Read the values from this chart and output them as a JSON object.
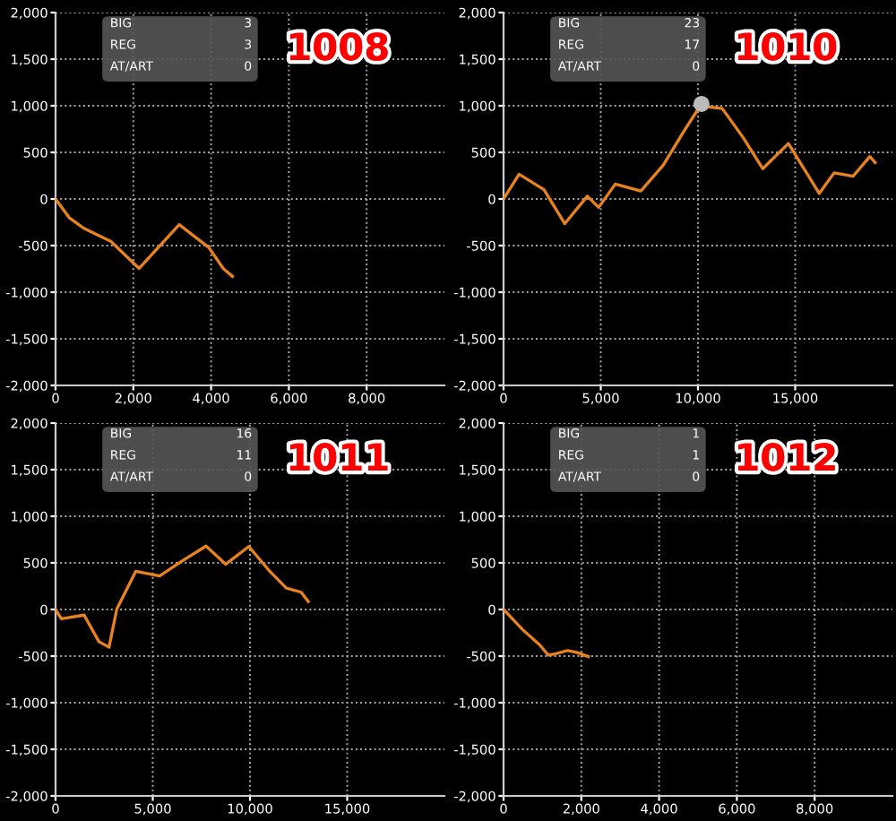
{
  "chart_data": [
    {
      "type": "line",
      "title": "1008",
      "annotations": [
        "BIG",
        "3",
        "REG",
        "3",
        "AT/ART",
        "0"
      ],
      "grid": true,
      "marker": "none",
      "line_style": "solid",
      "xlim": [
        0,
        10000
      ],
      "xticks": [
        0,
        {
          "value": 2000,
          "label": "2,000"
        },
        {
          "value": 4000,
          "label": "4,000"
        },
        {
          "value": 6000,
          "label": "6,000"
        },
        {
          "value": 8000,
          "label": "8,000"
        }
      ],
      "ylim": [
        -2000,
        2000
      ],
      "yticks": [
        {
          "value": -2000,
          "label": "-2,000"
        },
        {
          "value": -1500,
          "label": "-1,500"
        },
        {
          "value": -1000,
          "label": "-1,000"
        },
        -500,
        0,
        500,
        {
          "value": 1000,
          "label": "1,000"
        },
        {
          "value": 1500,
          "label": "1,500"
        },
        {
          "value": 2000,
          "label": "2,000"
        }
      ],
      "series": [
        {
          "color": "#e8821e",
          "x": [
            0,
            350,
            730,
            1420,
            2150,
            3180,
            3940,
            4320,
            4550
          ],
          "values": [
            0,
            -200,
            -315,
            -455,
            -745,
            -275,
            -520,
            -750,
            -830
          ]
        }
      ]
    },
    {
      "type": "line",
      "title": "1010",
      "annotations": [
        "BIG",
        "23",
        "REG",
        "17",
        "AT/ART",
        "0"
      ],
      "grid": true,
      "marker": "none",
      "line_style": "solid",
      "xlim": [
        0,
        20000
      ],
      "xticks": [
        0,
        {
          "value": 5000,
          "label": "5,000"
        },
        {
          "value": 10000,
          "label": "10,000"
        },
        {
          "value": 15000,
          "label": "15,000"
        }
      ],
      "ylim": [
        -2000,
        2000
      ],
      "yticks": [
        {
          "value": -2000,
          "label": "-2,000"
        },
        {
          "value": -1500,
          "label": "-1,500"
        },
        {
          "value": -1000,
          "label": "-1,000"
        },
        -500,
        0,
        500,
        {
          "value": 1000,
          "label": "1,000"
        },
        {
          "value": 1500,
          "label": "1,500"
        },
        {
          "value": 2000,
          "label": "2,000"
        }
      ],
      "series": [
        {
          "color": "#e8821e",
          "x": [
            0,
            800,
            2080,
            3150,
            4310,
            4890,
            5750,
            7060,
            8200,
            9270,
            10120,
            11250,
            12320,
            13330,
            14650,
            16240,
            17000,
            17980,
            18840,
            19110
          ],
          "values": [
            0,
            265,
            100,
            -265,
            30,
            -90,
            160,
            85,
            360,
            725,
            1000,
            970,
            660,
            325,
            595,
            60,
            280,
            245,
            455,
            390
          ]
        },
        {
          "type": "scatter",
          "color": "#bbbbbb",
          "marker": "circle",
          "x": [
            10180
          ],
          "values": [
            1020
          ]
        }
      ]
    },
    {
      "type": "line",
      "title": "1011",
      "annotations": [
        "BIG",
        "16",
        "REG",
        "11",
        "AT/ART",
        "0"
      ],
      "grid": true,
      "marker": "none",
      "line_style": "solid",
      "xlim": [
        0,
        20000
      ],
      "xticks": [
        0,
        {
          "value": 5000,
          "label": "5,000"
        },
        {
          "value": 10000,
          "label": "10,000"
        },
        {
          "value": 15000,
          "label": "15,000"
        }
      ],
      "ylim": [
        -2000,
        2000
      ],
      "yticks": [
        {
          "value": -2000,
          "label": "-2,000"
        },
        {
          "value": -1500,
          "label": "-1,500"
        },
        {
          "value": -1000,
          "label": "-1,000"
        },
        -500,
        0,
        500,
        {
          "value": 1000,
          "label": "1,000"
        },
        {
          "value": 1500,
          "label": "1,500"
        },
        {
          "value": 2000,
          "label": "2,000"
        }
      ],
      "series": [
        {
          "color": "#e8821e",
          "x": [
            0,
            300,
            1470,
            2230,
            2750,
            3150,
            4130,
            5350,
            6510,
            7740,
            8750,
            9940,
            10950,
            11870,
            12630,
            13000
          ],
          "values": [
            0,
            -100,
            -60,
            -345,
            -405,
            5,
            410,
            360,
            520,
            680,
            485,
            675,
            425,
            230,
            185,
            85
          ]
        }
      ]
    },
    {
      "type": "line",
      "title": "1012",
      "annotations": [
        "BIG",
        "1",
        "REG",
        "1",
        "AT/ART",
        "0"
      ],
      "grid": true,
      "marker": "none",
      "line_style": "solid",
      "xlim": [
        0,
        10000
      ],
      "xticks": [
        0,
        {
          "value": 2000,
          "label": "2,000"
        },
        {
          "value": 4000,
          "label": "4,000"
        },
        {
          "value": 6000,
          "label": "6,000"
        },
        {
          "value": 8000,
          "label": "8,000"
        }
      ],
      "ylim": [
        -2000,
        2000
      ],
      "yticks": [
        {
          "value": -2000,
          "label": "-2,000"
        },
        {
          "value": -1500,
          "label": "-1,500"
        },
        {
          "value": -1000,
          "label": "-1,000"
        },
        -500,
        0,
        500,
        {
          "value": 1000,
          "label": "1,000"
        },
        {
          "value": 1500,
          "label": "1,500"
        },
        {
          "value": 2000,
          "label": "2,000"
        }
      ],
      "series": [
        {
          "color": "#e8821e",
          "x": [
            0,
            500,
            930,
            1150,
            1340,
            1650,
            1880,
            2180
          ],
          "values": [
            0,
            -220,
            -380,
            -490,
            -475,
            -440,
            -460,
            -505
          ]
        }
      ]
    }
  ]
}
